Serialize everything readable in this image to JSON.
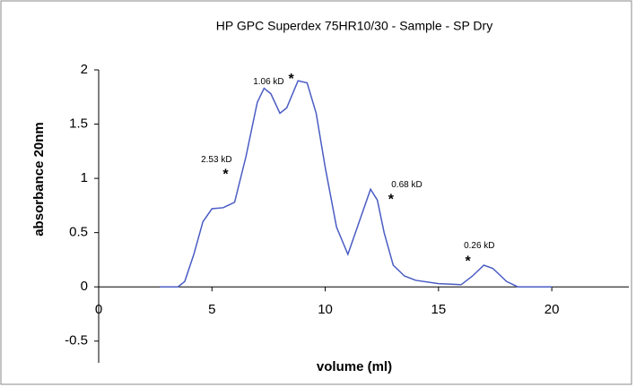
{
  "chart_data": {
    "type": "line",
    "title": "HP GPC Superdex 75HR10/30 - Sample - SP Dry",
    "x_label": "volume (ml)",
    "y_label": "absorbance 20nm",
    "x": [
      2.7,
      3.5,
      3.8,
      4.2,
      4.6,
      5,
      5.5,
      6,
      6.5,
      7,
      7.3,
      7.6,
      8,
      8.3,
      8.8,
      9.2,
      9.6,
      10,
      10.5,
      11,
      11.5,
      12,
      12.3,
      12.6,
      13,
      13.5,
      14,
      15,
      16,
      16.5,
      17,
      17.4,
      18,
      18.5,
      20
    ],
    "series": [
      {
        "name": "absorbance",
        "color": "#4a5cc4",
        "values": [
          0,
          0,
          0.05,
          0.3,
          0.6,
          0.72,
          0.73,
          0.78,
          1.2,
          1.7,
          1.83,
          1.78,
          1.6,
          1.65,
          1.9,
          1.88,
          1.6,
          1.1,
          0.55,
          0.3,
          0.6,
          0.9,
          0.8,
          0.5,
          0.2,
          0.1,
          0.06,
          0.03,
          0.02,
          0.1,
          0.2,
          0.17,
          0.05,
          0,
          0
        ]
      }
    ],
    "xlim": [
      0,
      23.4
    ],
    "xticks": [
      0,
      5,
      10,
      15,
      20
    ],
    "ylim": [
      -0.7,
      2
    ],
    "yticks": [
      -0.5,
      0,
      0.5,
      1,
      1.5,
      2
    ],
    "grid": false,
    "annotations": [
      {
        "text": "2.53 kD",
        "x": 5.2,
        "y": 1.17
      },
      {
        "text": "1.06 kD",
        "x": 7.5,
        "y": 1.89
      },
      {
        "text": "0.68 kD",
        "x": 13.6,
        "y": 0.94
      },
      {
        "text": "0.26 kD",
        "x": 16.8,
        "y": 0.38
      },
      {
        "text": "*",
        "x": 5.6,
        "y": 1.03
      },
      {
        "text": "*",
        "x": 8.5,
        "y": 1.91
      },
      {
        "text": "*",
        "x": 12.9,
        "y": 0.8
      },
      {
        "text": "*",
        "x": 16.3,
        "y": 0.23
      }
    ]
  }
}
